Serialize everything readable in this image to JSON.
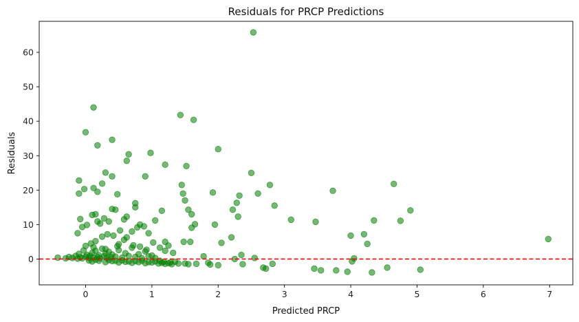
{
  "chart_data": {
    "type": "scatter",
    "title": "Residuals for PRCP Predictions",
    "xlabel": "Predicted PRCP",
    "ylabel": "Residuals",
    "xlim": [
      -0.7,
      7.35
    ],
    "ylim": [
      -7.5,
      69
    ],
    "xticks": [
      0,
      1,
      2,
      3,
      4,
      5,
      6,
      7
    ],
    "yticks": [
      0,
      10,
      20,
      30,
      40,
      50,
      60
    ],
    "grid": false,
    "colors": {
      "points": "#008000",
      "reference_line": "#ff0000"
    },
    "reference_line": {
      "y": 0,
      "style": "dashed"
    },
    "points": [
      [
        -0.42,
        0.4
      ],
      [
        -0.3,
        0.2
      ],
      [
        -0.25,
        0.6
      ],
      [
        -0.2,
        0.3
      ],
      [
        -0.15,
        0.9
      ],
      [
        -0.12,
        0.1
      ],
      [
        -0.1,
        1.5
      ],
      [
        -0.08,
        0.5
      ],
      [
        -0.05,
        0.2
      ],
      [
        -0.03,
        2.5
      ],
      [
        0.0,
        0.7
      ],
      [
        0.02,
        1.2
      ],
      [
        0.05,
        0.3
      ],
      [
        0.07,
        0.9
      ],
      [
        0.1,
        1.8
      ],
      [
        0.12,
        0.4
      ],
      [
        0.15,
        2.4
      ],
      [
        0.18,
        0.6
      ],
      [
        0.2,
        1.1
      ],
      [
        0.22,
        0.2
      ],
      [
        0.25,
        3.0
      ],
      [
        0.28,
        0.8
      ],
      [
        0.3,
        1.6
      ],
      [
        0.32,
        0.3
      ],
      [
        0.35,
        2.1
      ],
      [
        0.38,
        0.5
      ],
      [
        0.4,
        1.3
      ],
      [
        0.45,
        0.7
      ],
      [
        0.5,
        2.6
      ],
      [
        0.55,
        0.4
      ],
      [
        0.6,
        1.7
      ],
      [
        0.65,
        0.9
      ],
      [
        0.7,
        3.3
      ],
      [
        0.75,
        0.6
      ],
      [
        0.8,
        1.4
      ],
      [
        0.85,
        0.2
      ],
      [
        0.9,
        2.2
      ],
      [
        0.95,
        0.8
      ],
      [
        1.0,
        1.0
      ],
      [
        1.05,
        0.3
      ],
      [
        0.05,
        -0.4
      ],
      [
        0.1,
        -0.7
      ],
      [
        0.2,
        -0.5
      ],
      [
        0.3,
        -0.9
      ],
      [
        0.4,
        -0.6
      ],
      [
        0.5,
        -1.0
      ],
      [
        0.6,
        -0.8
      ],
      [
        0.7,
        -1.1
      ],
      [
        0.8,
        -0.9
      ],
      [
        0.9,
        -1.2
      ],
      [
        1.0,
        -1.0
      ],
      [
        1.1,
        -1.3
      ],
      [
        1.15,
        -1.1
      ],
      [
        1.2,
        -1.4
      ],
      [
        1.25,
        -1.2
      ],
      [
        1.3,
        -1.5
      ],
      [
        1.35,
        -0.8
      ],
      [
        1.4,
        -1.3
      ],
      [
        0.15,
        -0.2
      ],
      [
        0.35,
        -0.3
      ],
      [
        0.45,
        -0.5
      ],
      [
        0.55,
        -0.4
      ],
      [
        0.65,
        -0.7
      ],
      [
        0.75,
        -0.6
      ],
      [
        0.85,
        -0.5
      ],
      [
        0.95,
        -0.9
      ],
      [
        1.05,
        -0.7
      ],
      [
        1.12,
        -0.5
      ],
      [
        1.18,
        -0.8
      ],
      [
        1.28,
        -1.0
      ],
      [
        0.0,
        3.8
      ],
      [
        0.08,
        4.5
      ],
      [
        0.15,
        5.2
      ],
      [
        0.25,
        6.5
      ],
      [
        0.33,
        7.2
      ],
      [
        0.42,
        6.8
      ],
      [
        0.5,
        4.3
      ],
      [
        0.58,
        5.6
      ],
      [
        0.62,
        6.3
      ],
      [
        0.72,
        4.0
      ],
      [
        0.82,
        3.6
      ],
      [
        0.92,
        2.7
      ],
      [
        1.02,
        4.8
      ],
      [
        1.12,
        3.3
      ],
      [
        1.2,
        2.4
      ],
      [
        1.25,
        3.9
      ],
      [
        1.32,
        1.8
      ],
      [
        0.12,
        3.4
      ],
      [
        0.3,
        2.9
      ],
      [
        0.48,
        3.7
      ],
      [
        -0.12,
        7.5
      ],
      [
        -0.08,
        11.6
      ],
      [
        -0.05,
        9.3
      ],
      [
        0.02,
        9.9
      ],
      [
        0.1,
        12.8
      ],
      [
        0.15,
        13.0
      ],
      [
        0.18,
        10.9
      ],
      [
        0.22,
        10.3
      ],
      [
        0.28,
        11.8
      ],
      [
        0.35,
        10.9
      ],
      [
        0.4,
        14.5
      ],
      [
        0.45,
        14.3
      ],
      [
        0.52,
        8.3
      ],
      [
        0.58,
        11.5
      ],
      [
        0.62,
        12.3
      ],
      [
        0.7,
        8.0
      ],
      [
        0.75,
        15.0
      ],
      [
        0.78,
        9.2
      ],
      [
        0.82,
        10.0
      ],
      [
        0.88,
        9.5
      ],
      [
        0.95,
        7.5
      ],
      [
        1.05,
        11.2
      ],
      [
        1.15,
        14.0
      ],
      [
        1.2,
        5.0
      ],
      [
        -0.1,
        19.0
      ],
      [
        -0.02,
        20.3
      ],
      [
        0.12,
        20.6
      ],
      [
        0.18,
        19.5
      ],
      [
        0.25,
        21.9
      ],
      [
        0.3,
        25.1
      ],
      [
        0.4,
        24.0
      ],
      [
        0.48,
        18.8
      ],
      [
        0.62,
        28.5
      ],
      [
        0.65,
        30.4
      ],
      [
        0.75,
        16.2
      ],
      [
        0.9,
        24.0
      ],
      [
        0.98,
        30.8
      ],
      [
        1.2,
        27.4
      ],
      [
        -0.1,
        22.8
      ],
      [
        0.18,
        33.0
      ],
      [
        0.0,
        36.8
      ],
      [
        0.12,
        44.0
      ],
      [
        0.4,
        34.6
      ],
      [
        1.43,
        41.8
      ],
      [
        1.63,
        40.4
      ],
      [
        1.45,
        21.5
      ],
      [
        1.47,
        19.0
      ],
      [
        1.5,
        17.0
      ],
      [
        1.52,
        27.0
      ],
      [
        1.55,
        14.3
      ],
      [
        1.6,
        13.0
      ],
      [
        1.6,
        9.1
      ],
      [
        1.65,
        10.1
      ],
      [
        1.48,
        5.0
      ],
      [
        1.58,
        5.0
      ],
      [
        1.5,
        -1.3
      ],
      [
        1.55,
        -1.5
      ],
      [
        1.67,
        -1.4
      ],
      [
        1.78,
        0.8
      ],
      [
        1.85,
        -1.1
      ],
      [
        1.88,
        -1.6
      ],
      [
        1.92,
        19.3
      ],
      [
        1.95,
        10.0
      ],
      [
        2.0,
        31.9
      ],
      [
        2.05,
        4.7
      ],
      [
        2.0,
        -1.8
      ],
      [
        2.2,
        6.3
      ],
      [
        2.22,
        14.3
      ],
      [
        2.28,
        16.3
      ],
      [
        2.3,
        12.3
      ],
      [
        2.32,
        18.4
      ],
      [
        2.25,
        0.0
      ],
      [
        2.35,
        1.2
      ],
      [
        2.37,
        -1.5
      ],
      [
        2.5,
        25.0
      ],
      [
        2.53,
        65.8
      ],
      [
        2.55,
        0.3
      ],
      [
        2.6,
        19.0
      ],
      [
        2.68,
        -2.5
      ],
      [
        2.72,
        -2.8
      ],
      [
        2.78,
        21.5
      ],
      [
        2.82,
        -1.4
      ],
      [
        2.85,
        15.5
      ],
      [
        3.1,
        11.4
      ],
      [
        3.45,
        -2.8
      ],
      [
        3.47,
        10.8
      ],
      [
        3.55,
        -3.3
      ],
      [
        3.73,
        19.8
      ],
      [
        3.78,
        -3.3
      ],
      [
        3.95,
        -3.7
      ],
      [
        4.0,
        6.8
      ],
      [
        4.02,
        -0.7
      ],
      [
        4.05,
        0.2
      ],
      [
        4.2,
        7.2
      ],
      [
        4.25,
        4.4
      ],
      [
        4.32,
        -3.9
      ],
      [
        4.35,
        11.2
      ],
      [
        4.55,
        -2.5
      ],
      [
        4.65,
        21.8
      ],
      [
        4.75,
        11.1
      ],
      [
        4.9,
        14.1
      ],
      [
        5.05,
        -3.1
      ],
      [
        6.98,
        5.8
      ]
    ]
  }
}
